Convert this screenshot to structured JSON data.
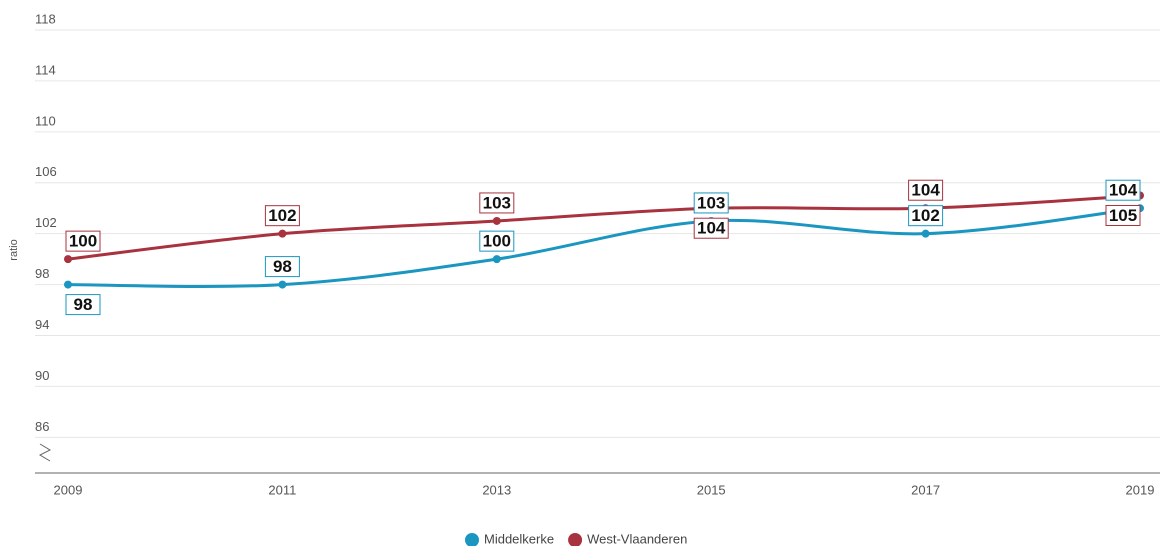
{
  "chart_data": {
    "type": "line",
    "ylabel": "ratio",
    "categories": [
      "2009",
      "2011",
      "2013",
      "2015",
      "2017",
      "2019"
    ],
    "series": [
      {
        "name": "Middelkerke",
        "color": "#1a96c0",
        "values": [
          98,
          98,
          100,
          103,
          102,
          104
        ]
      },
      {
        "name": "West-Vlaanderen",
        "color": "#a8323e",
        "values": [
          100,
          102,
          103,
          104,
          104,
          105
        ]
      }
    ],
    "ylim": [
      83.2,
      118
    ],
    "yticks": [
      86,
      90,
      94,
      98,
      102,
      106,
      110,
      114,
      118
    ],
    "grid": true
  }
}
